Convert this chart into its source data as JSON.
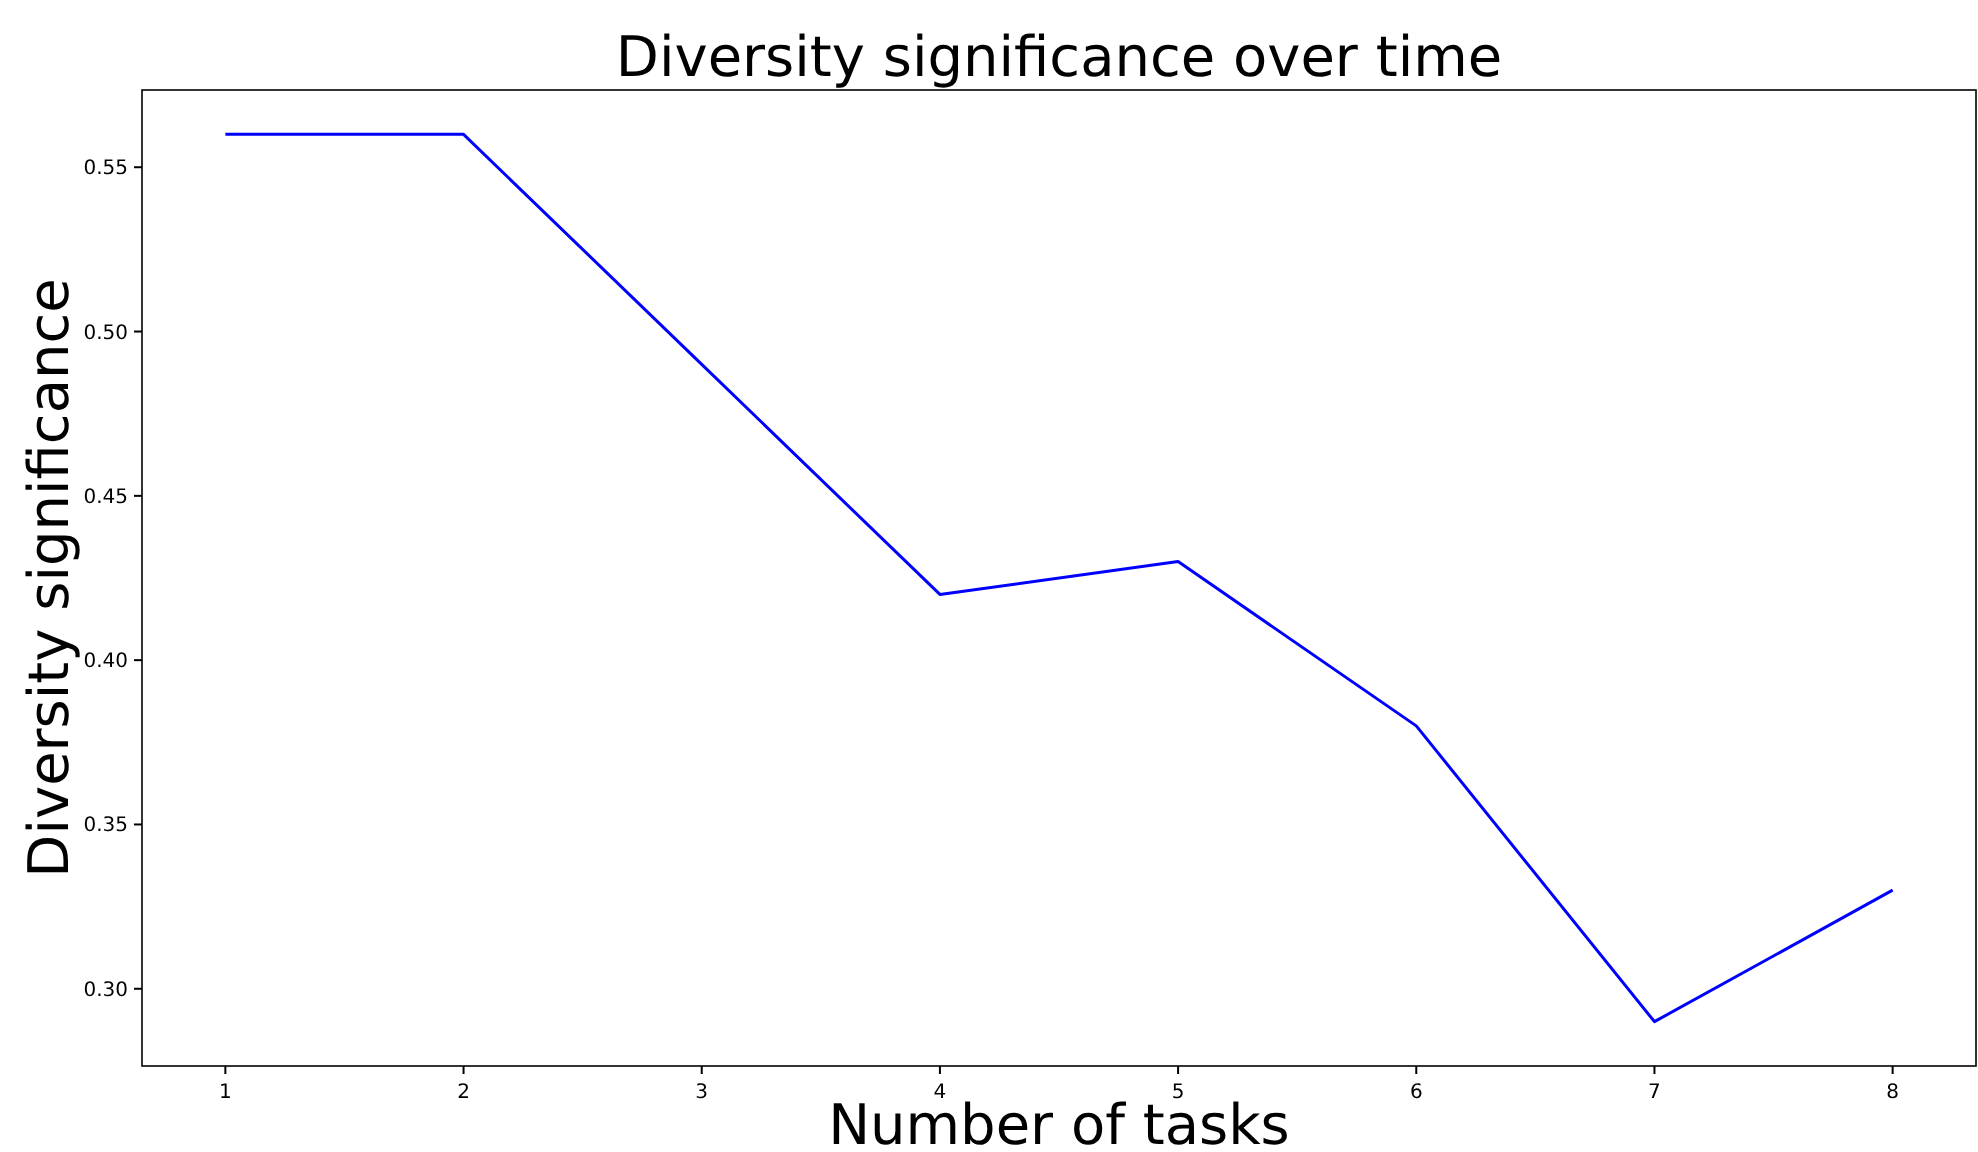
{
  "chart_data": {
    "type": "line",
    "title": "Diversity significance over time",
    "xlabel": "Number of tasks",
    "ylabel": "Diversity significance",
    "x": [
      1,
      2,
      3,
      4,
      5,
      6,
      7,
      8
    ],
    "series": [
      {
        "color": "#0000ff",
        "values": [
          0.56,
          0.56,
          0.49,
          0.42,
          0.43,
          0.38,
          0.29,
          0.33
        ]
      }
    ],
    "xlim": [
      0.65,
      8.35
    ],
    "xticks": [
      1,
      2,
      3,
      4,
      5,
      6,
      7,
      8
    ],
    "ylim": [
      0.2765,
      0.5735
    ],
    "yticks": [
      {
        "value": 0.3,
        "label": "0.30"
      },
      {
        "value": 0.35,
        "label": "0.35"
      },
      {
        "value": 0.4,
        "label": "0.40"
      },
      {
        "value": 0.45,
        "label": "0.45"
      },
      {
        "value": 0.5,
        "label": "0.50"
      },
      {
        "value": 0.55,
        "label": "0.55"
      }
    ],
    "grid": false,
    "marker": "none",
    "line_style": "solid"
  }
}
